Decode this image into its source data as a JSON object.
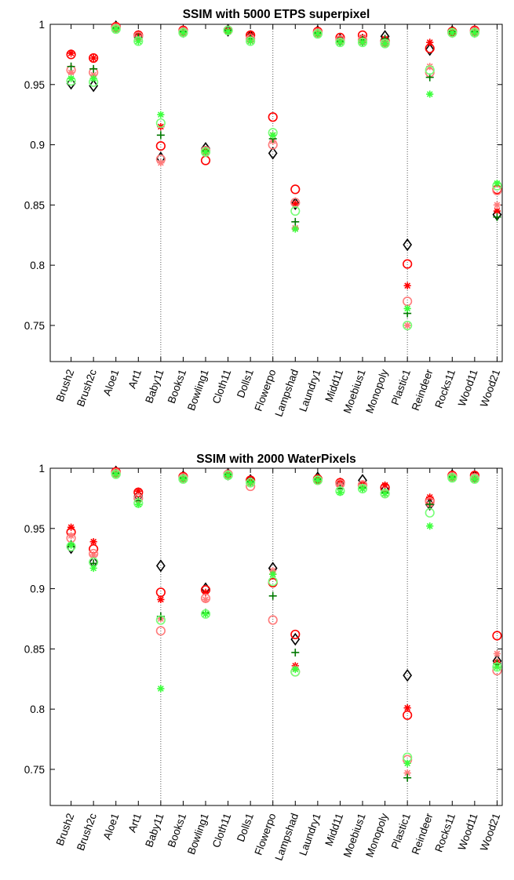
{
  "chart_data": [
    {
      "type": "scatter",
      "title": "SSIM with 5000 ETPS superpixel",
      "xlabel": "",
      "ylabel": "",
      "ylim": [
        0.72,
        1.0
      ],
      "yticks": [
        "0.75",
        "0.8",
        "0.85",
        "0.9",
        "0.95",
        "1"
      ],
      "categories": [
        "Brush2",
        "Brush2c",
        "Aloe1",
        "Art1",
        "Baby11",
        "Books1",
        "Bowling1",
        "Cloth11",
        "Dolls1",
        "Flowerpo",
        "Lampshad",
        "Laundry1",
        "Midd11",
        "Moebius1",
        "Monopoly",
        "Plastic1",
        "Reindeer",
        "Rocks11",
        "Wood11",
        "Wood21"
      ],
      "separators_after": [
        "Art1",
        "Dolls1",
        "Monopoly",
        "Wood11"
      ],
      "legend": "none",
      "series": [
        {
          "marker": "diamond",
          "color": "#000000",
          "values": [
            0.951,
            0.949,
            0.998,
            0.99,
            0.889,
            0.994,
            0.897,
            0.995,
            0.99,
            0.893,
            0.851,
            0.994,
            0.987,
            0.987,
            0.99,
            0.817,
            0.979,
            0.994,
            0.994,
            0.842
          ]
        },
        {
          "marker": "circle",
          "color": "#ff0000",
          "values": [
            0.975,
            0.972,
            0.998,
            0.991,
            0.899,
            0.995,
            0.887,
            0.995,
            0.991,
            0.923,
            0.863,
            0.994,
            0.989,
            0.991,
            0.986,
            0.801,
            0.98,
            0.994,
            0.995,
            0.863
          ]
        },
        {
          "marker": "asterisk",
          "color": "#ff0000",
          "values": [
            0.976,
            0.972,
            0.998,
            0.991,
            0.915,
            0.995,
            0.896,
            0.995,
            0.991,
            0.908,
            0.851,
            0.994,
            0.988,
            0.989,
            0.988,
            0.783,
            0.985,
            0.994,
            0.995,
            0.845
          ]
        },
        {
          "marker": "circle",
          "color": "#ff7b7b",
          "values": [
            0.962,
            0.96,
            0.997,
            0.99,
            0.888,
            0.994,
            0.895,
            0.995,
            0.988,
            0.9,
            0.852,
            0.993,
            0.987,
            0.987,
            0.985,
            0.77,
            0.96,
            0.993,
            0.994,
            0.862
          ]
        },
        {
          "marker": "asterisk",
          "color": "#ff7b7b",
          "values": [
            0.96,
            0.958,
            0.997,
            0.989,
            0.885,
            0.994,
            0.893,
            0.994,
            0.987,
            0.903,
            0.831,
            0.993,
            0.986,
            0.986,
            0.985,
            0.75,
            0.965,
            0.993,
            0.994,
            0.85
          ]
        },
        {
          "marker": "plus",
          "color": "#007800",
          "values": [
            0.965,
            0.963,
            0.997,
            0.989,
            0.908,
            0.994,
            0.895,
            0.995,
            0.988,
            0.905,
            0.836,
            0.993,
            0.986,
            0.987,
            0.988,
            0.76,
            0.956,
            0.994,
            0.994,
            0.84
          ]
        },
        {
          "marker": "circle",
          "color": "#78ff78",
          "values": [
            0.953,
            0.952,
            0.996,
            0.986,
            0.918,
            0.993,
            0.894,
            0.995,
            0.986,
            0.91,
            0.845,
            0.992,
            0.985,
            0.985,
            0.984,
            0.75,
            0.962,
            0.993,
            0.993,
            0.866
          ]
        },
        {
          "marker": "asterisk",
          "color": "#3cff3c",
          "values": [
            0.955,
            0.955,
            0.996,
            0.986,
            0.925,
            0.993,
            0.894,
            0.994,
            0.986,
            0.908,
            0.83,
            0.992,
            0.985,
            0.985,
            0.984,
            0.764,
            0.942,
            0.993,
            0.993,
            0.868
          ]
        }
      ]
    },
    {
      "type": "scatter",
      "title": "SSIM with 2000 WaterPixels",
      "xlabel": "",
      "ylabel": "",
      "ylim": [
        0.72,
        1.0
      ],
      "yticks": [
        "0.75",
        "0.8",
        "0.85",
        "0.9",
        "0.95",
        "1"
      ],
      "categories": [
        "Brush2",
        "Brush2c",
        "Aloe1",
        "Art1",
        "Baby11",
        "Books1",
        "Bowling1",
        "Cloth11",
        "Dolls1",
        "Flowerpo",
        "Lampshad",
        "Laundry1",
        "Midd11",
        "Moebius1",
        "Monopoly",
        "Plastic1",
        "Reindeer",
        "Rocks11",
        "Wood11",
        "Wood21"
      ],
      "separators_after": [
        "Art1",
        "Dolls1",
        "Monopoly",
        "Wood11"
      ],
      "legend": "none",
      "series": [
        {
          "marker": "diamond",
          "color": "#000000",
          "values": [
            0.934,
            0.922,
            0.997,
            0.977,
            0.919,
            0.993,
            0.9,
            0.995,
            0.99,
            0.917,
            0.858,
            0.992,
            0.987,
            0.99,
            0.982,
            0.828,
            0.97,
            0.994,
            0.993,
            0.84
          ]
        },
        {
          "marker": "circle",
          "color": "#ff0000",
          "values": [
            0.947,
            0.933,
            0.997,
            0.98,
            0.897,
            0.993,
            0.899,
            0.995,
            0.99,
            0.905,
            0.862,
            0.991,
            0.988,
            0.986,
            0.984,
            0.795,
            0.973,
            0.994,
            0.994,
            0.861
          ]
        },
        {
          "marker": "asterisk",
          "color": "#ff0000",
          "values": [
            0.951,
            0.939,
            0.997,
            0.981,
            0.891,
            0.993,
            0.897,
            0.995,
            0.99,
            0.912,
            0.836,
            0.992,
            0.989,
            0.987,
            0.986,
            0.801,
            0.976,
            0.994,
            0.994,
            0.839
          ]
        },
        {
          "marker": "circle",
          "color": "#ff7b7b",
          "values": [
            0.942,
            0.929,
            0.996,
            0.975,
            0.865,
            0.992,
            0.892,
            0.995,
            0.985,
            0.874,
            0.831,
            0.99,
            0.987,
            0.986,
            0.979,
            0.758,
            0.972,
            0.993,
            0.992,
            0.832
          ]
        },
        {
          "marker": "asterisk",
          "color": "#ff7b7b",
          "values": [
            0.944,
            0.928,
            0.996,
            0.974,
            0.875,
            0.992,
            0.891,
            0.994,
            0.987,
            0.915,
            0.834,
            0.99,
            0.986,
            0.985,
            0.979,
            0.747,
            0.97,
            0.993,
            0.992,
            0.846
          ]
        },
        {
          "marker": "plus",
          "color": "#007800",
          "values": [
            0.937,
            0.921,
            0.996,
            0.973,
            0.877,
            0.992,
            0.88,
            0.995,
            0.989,
            0.894,
            0.847,
            0.991,
            0.983,
            0.984,
            0.98,
            0.743,
            0.97,
            0.993,
            0.991,
            0.838
          ]
        },
        {
          "marker": "circle",
          "color": "#78ff78",
          "values": [
            0.935,
            0.922,
            0.995,
            0.971,
            0.874,
            0.991,
            0.879,
            0.994,
            0.988,
            0.906,
            0.831,
            0.99,
            0.981,
            0.983,
            0.979,
            0.76,
            0.963,
            0.992,
            0.991,
            0.835
          ]
        },
        {
          "marker": "asterisk",
          "color": "#3cff3c",
          "values": [
            0.936,
            0.917,
            0.995,
            0.97,
            0.817,
            0.991,
            0.879,
            0.994,
            0.988,
            0.912,
            0.833,
            0.99,
            0.98,
            0.983,
            0.979,
            0.755,
            0.952,
            0.992,
            0.991,
            0.835
          ]
        }
      ]
    }
  ]
}
